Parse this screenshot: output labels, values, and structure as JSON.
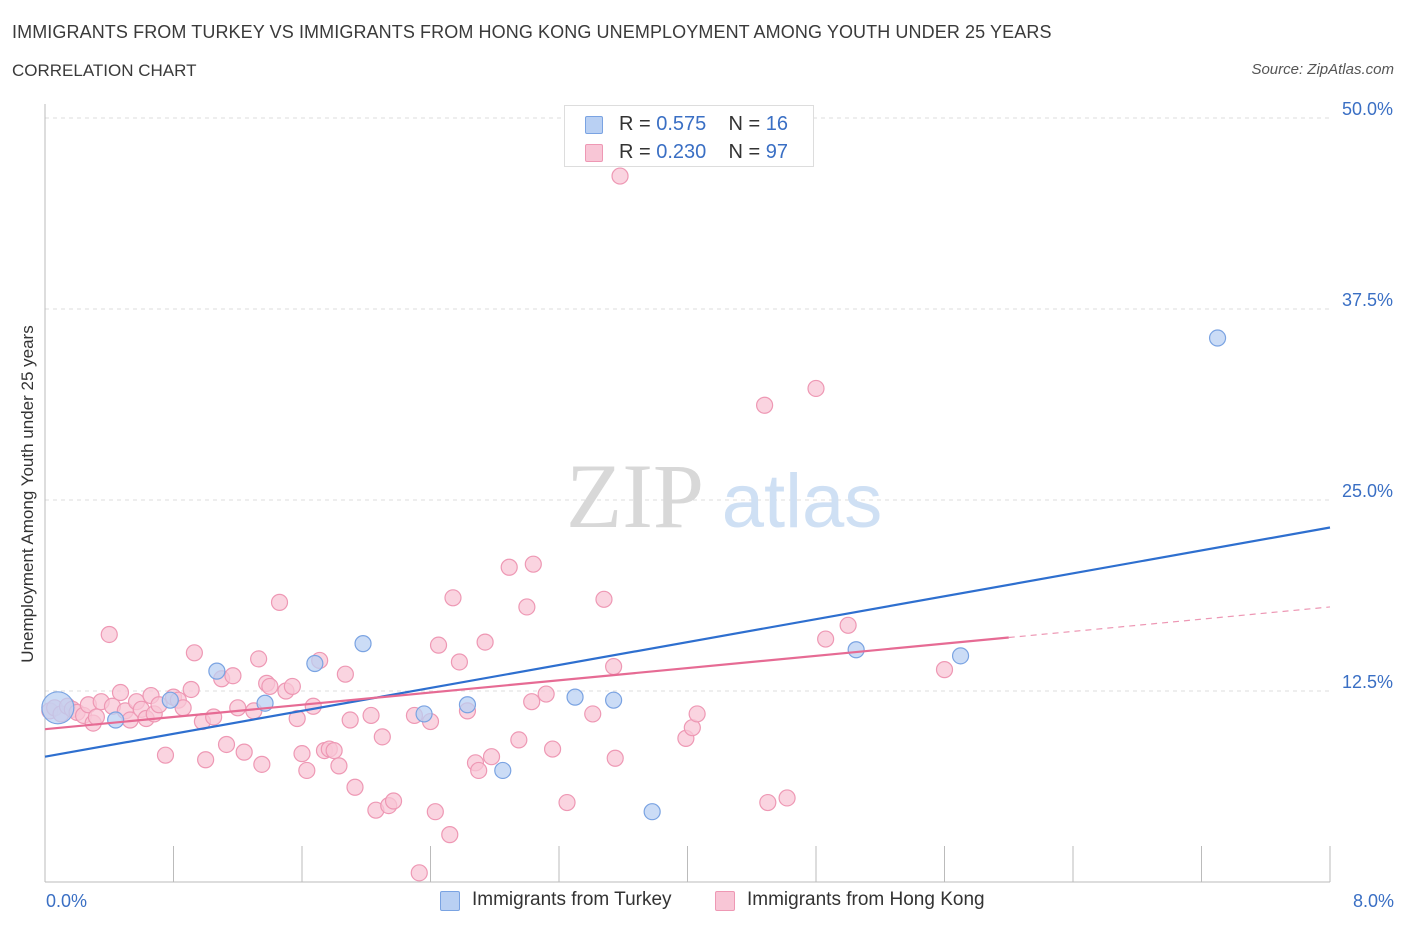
{
  "header": {
    "title": "IMMIGRANTS FROM TURKEY VS IMMIGRANTS FROM HONG KONG UNEMPLOYMENT AMONG YOUTH UNDER 25 YEARS",
    "subtitle": "CORRELATION CHART",
    "source": "Source: ZipAtlas.com"
  },
  "legend": {
    "r_label": "R =",
    "n_label": "N =",
    "turkey": {
      "r": "0.575",
      "n": "16"
    },
    "hongkong": {
      "r": "0.230",
      "n": "97"
    }
  },
  "watermark": {
    "zip": "ZIP",
    "atlas": "atlas"
  },
  "colors": {
    "turkey_fill": "#b9d0f3",
    "turkey_stroke": "#7aa3e2",
    "turkey_line": "#2e6fcf",
    "hongkong_fill": "#f8c6d6",
    "hongkong_stroke": "#ee98b4",
    "hongkong_line": "#e66b94",
    "tick_text": "#3a6fc4",
    "grid": "#dddddd"
  },
  "chart_data": {
    "type": "scatter",
    "title": "IMMIGRANTS FROM TURKEY VS IMMIGRANTS FROM HONG KONG UNEMPLOYMENT AMONG YOUTH UNDER 25 YEARS",
    "xlabel": "",
    "ylabel": "Unemployment Among Youth under 25 years",
    "xlim": [
      0,
      8
    ],
    "ylim": [
      0,
      50
    ],
    "x_tick_labels": [
      "0.0%",
      "8.0%"
    ],
    "y_ticks": [
      12.5,
      25,
      37.5,
      50
    ],
    "y_tick_labels": [
      "12.5%",
      "25.0%",
      "37.5%",
      "50.0%"
    ],
    "grid": true,
    "legend_position": "top-center",
    "series": [
      {
        "name": "Immigrants from Turkey",
        "R": 0.575,
        "N": 16,
        "trend": {
          "x": [
            0,
            8
          ],
          "y": [
            8.2,
            23.2
          ]
        },
        "points": [
          {
            "x": 0.08,
            "y": 11.4,
            "big": true
          },
          {
            "x": 0.44,
            "y": 10.6
          },
          {
            "x": 0.78,
            "y": 11.9
          },
          {
            "x": 1.07,
            "y": 13.8
          },
          {
            "x": 1.37,
            "y": 11.7
          },
          {
            "x": 1.68,
            "y": 14.3
          },
          {
            "x": 1.98,
            "y": 15.6
          },
          {
            "x": 2.36,
            "y": 11.0
          },
          {
            "x": 2.63,
            "y": 11.6
          },
          {
            "x": 2.85,
            "y": 7.3
          },
          {
            "x": 3.3,
            "y": 12.1
          },
          {
            "x": 3.54,
            "y": 11.9
          },
          {
            "x": 3.78,
            "y": 4.6
          },
          {
            "x": 5.05,
            "y": 15.2
          },
          {
            "x": 5.7,
            "y": 14.8
          },
          {
            "x": 7.3,
            "y": 35.6
          }
        ]
      },
      {
        "name": "Immigrants from Hong Kong",
        "R": 0.23,
        "N": 97,
        "trend": {
          "x": [
            0,
            6
          ],
          "y": [
            10.0,
            16.0
          ]
        },
        "trend_dashed": {
          "x": [
            6,
            8
          ],
          "y": [
            16.0,
            18.0
          ]
        },
        "points": [
          {
            "x": 0.03,
            "y": 11.2
          },
          {
            "x": 0.06,
            "y": 11.4
          },
          {
            "x": 0.1,
            "y": 11.0
          },
          {
            "x": 0.14,
            "y": 11.5
          },
          {
            "x": 0.17,
            "y": 11.3
          },
          {
            "x": 0.2,
            "y": 11.1
          },
          {
            "x": 0.24,
            "y": 10.9
          },
          {
            "x": 0.27,
            "y": 11.6
          },
          {
            "x": 0.3,
            "y": 10.4
          },
          {
            "x": 0.32,
            "y": 10.8
          },
          {
            "x": 0.35,
            "y": 11.8
          },
          {
            "x": 0.4,
            "y": 16.2
          },
          {
            "x": 0.42,
            "y": 11.5
          },
          {
            "x": 0.47,
            "y": 12.4
          },
          {
            "x": 0.5,
            "y": 11.2
          },
          {
            "x": 0.53,
            "y": 10.6
          },
          {
            "x": 0.57,
            "y": 11.8
          },
          {
            "x": 0.6,
            "y": 11.3
          },
          {
            "x": 0.63,
            "y": 10.7
          },
          {
            "x": 0.66,
            "y": 12.2
          },
          {
            "x": 0.68,
            "y": 11.0
          },
          {
            "x": 0.71,
            "y": 11.6
          },
          {
            "x": 0.75,
            "y": 8.3
          },
          {
            "x": 0.8,
            "y": 12.1
          },
          {
            "x": 0.83,
            "y": 11.9
          },
          {
            "x": 0.86,
            "y": 11.4
          },
          {
            "x": 0.91,
            "y": 12.6
          },
          {
            "x": 0.93,
            "y": 15.0
          },
          {
            "x": 0.98,
            "y": 10.5
          },
          {
            "x": 1.0,
            "y": 8.0
          },
          {
            "x": 1.05,
            "y": 10.8
          },
          {
            "x": 1.1,
            "y": 13.3
          },
          {
            "x": 1.13,
            "y": 9.0
          },
          {
            "x": 1.17,
            "y": 13.5
          },
          {
            "x": 1.2,
            "y": 11.4
          },
          {
            "x": 1.24,
            "y": 8.5
          },
          {
            "x": 1.3,
            "y": 11.2
          },
          {
            "x": 1.33,
            "y": 14.6
          },
          {
            "x": 1.35,
            "y": 7.7
          },
          {
            "x": 1.38,
            "y": 13.0
          },
          {
            "x": 1.4,
            "y": 12.8
          },
          {
            "x": 1.46,
            "y": 18.3
          },
          {
            "x": 1.5,
            "y": 12.5
          },
          {
            "x": 1.54,
            "y": 12.8
          },
          {
            "x": 1.57,
            "y": 10.7
          },
          {
            "x": 1.6,
            "y": 8.4
          },
          {
            "x": 1.63,
            "y": 7.3
          },
          {
            "x": 1.67,
            "y": 11.5
          },
          {
            "x": 1.71,
            "y": 14.5
          },
          {
            "x": 1.74,
            "y": 8.6
          },
          {
            "x": 1.77,
            "y": 8.7
          },
          {
            "x": 1.8,
            "y": 8.6
          },
          {
            "x": 1.83,
            "y": 7.6
          },
          {
            "x": 1.87,
            "y": 13.6
          },
          {
            "x": 1.9,
            "y": 10.6
          },
          {
            "x": 1.93,
            "y": 6.2
          },
          {
            "x": 2.03,
            "y": 10.9
          },
          {
            "x": 2.06,
            "y": 4.7
          },
          {
            "x": 2.1,
            "y": 9.5
          },
          {
            "x": 2.14,
            "y": 5.0
          },
          {
            "x": 2.17,
            "y": 5.3
          },
          {
            "x": 2.3,
            "y": 10.9
          },
          {
            "x": 2.33,
            "y": 0.6
          },
          {
            "x": 2.4,
            "y": 10.5
          },
          {
            "x": 2.43,
            "y": 4.6
          },
          {
            "x": 2.45,
            "y": 15.5
          },
          {
            "x": 2.52,
            "y": 3.1
          },
          {
            "x": 2.54,
            "y": 18.6
          },
          {
            "x": 2.58,
            "y": 14.4
          },
          {
            "x": 2.63,
            "y": 11.2
          },
          {
            "x": 2.68,
            "y": 7.8
          },
          {
            "x": 2.7,
            "y": 7.3
          },
          {
            "x": 2.74,
            "y": 15.7
          },
          {
            "x": 2.78,
            "y": 8.2
          },
          {
            "x": 2.89,
            "y": 20.6
          },
          {
            "x": 2.95,
            "y": 9.3
          },
          {
            "x": 3.0,
            "y": 18.0
          },
          {
            "x": 3.03,
            "y": 11.8
          },
          {
            "x": 3.04,
            "y": 20.8
          },
          {
            "x": 3.12,
            "y": 12.3
          },
          {
            "x": 3.16,
            "y": 8.7
          },
          {
            "x": 3.25,
            "y": 5.2
          },
          {
            "x": 3.41,
            "y": 11.0
          },
          {
            "x": 3.48,
            "y": 18.5
          },
          {
            "x": 3.54,
            "y": 14.1
          },
          {
            "x": 3.55,
            "y": 8.1
          },
          {
            "x": 3.99,
            "y": 9.4
          },
          {
            "x": 4.03,
            "y": 10.1
          },
          {
            "x": 4.06,
            "y": 11.0
          },
          {
            "x": 4.48,
            "y": 31.2
          },
          {
            "x": 4.5,
            "y": 5.2
          },
          {
            "x": 4.62,
            "y": 5.5
          },
          {
            "x": 4.8,
            "y": 32.3
          },
          {
            "x": 4.86,
            "y": 15.9
          },
          {
            "x": 5.0,
            "y": 16.8
          },
          {
            "x": 5.6,
            "y": 13.9
          },
          {
            "x": 3.58,
            "y": 46.2
          }
        ]
      }
    ]
  },
  "bottom_legend": {
    "turkey_label": "Immigrants from Turkey",
    "hongkong_label": "Immigrants from Hong Kong"
  }
}
